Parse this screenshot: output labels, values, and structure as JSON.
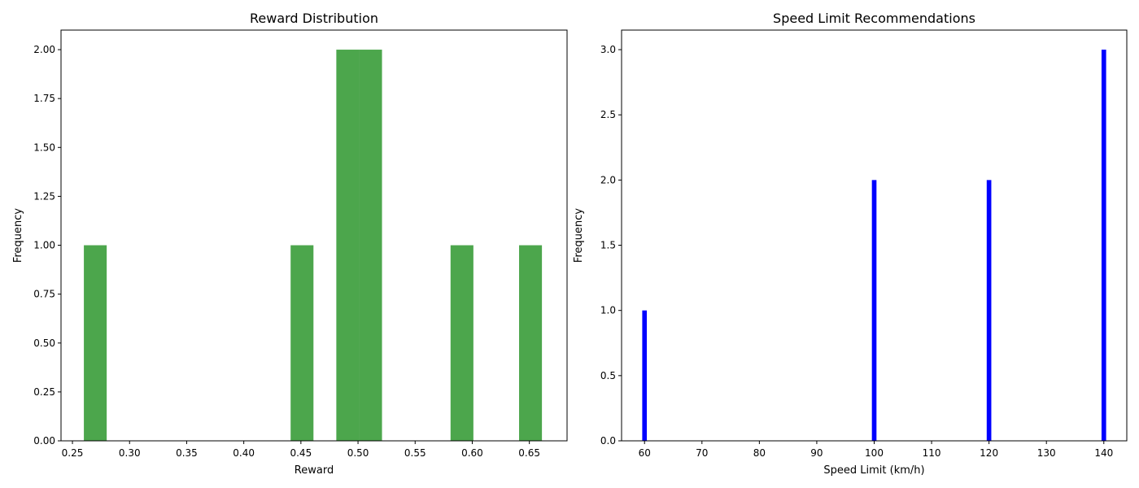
{
  "chart_data": [
    {
      "type": "bar",
      "title": "Reward Distribution",
      "xlabel": "Reward",
      "ylabel": "Frequency",
      "color": "#4ca64c",
      "xlim": [
        0.24,
        0.683
      ],
      "ylim": [
        0,
        2.1
      ],
      "xticks": [
        0.25,
        0.3,
        0.35,
        0.4,
        0.45,
        0.5,
        0.55,
        0.6,
        0.65
      ],
      "xtick_labels": [
        "0.25",
        "0.30",
        "0.35",
        "0.40",
        "0.45",
        "0.50",
        "0.55",
        "0.60",
        "0.65"
      ],
      "yticks": [
        0,
        0.25,
        0.5,
        0.75,
        1.0,
        1.25,
        1.5,
        1.75,
        2.0
      ],
      "ytick_labels": [
        "0.00",
        "0.25",
        "0.50",
        "0.75",
        "1.00",
        "1.25",
        "1.50",
        "1.75",
        "2.00"
      ],
      "bars": [
        {
          "x0": 0.26,
          "x1": 0.28,
          "value": 1
        },
        {
          "x0": 0.441,
          "x1": 0.461,
          "value": 1
        },
        {
          "x0": 0.481,
          "x1": 0.501,
          "value": 2
        },
        {
          "x0": 0.501,
          "x1": 0.521,
          "value": 2
        },
        {
          "x0": 0.581,
          "x1": 0.601,
          "value": 1
        },
        {
          "x0": 0.641,
          "x1": 0.661,
          "value": 1
        }
      ],
      "grid": false
    },
    {
      "type": "bar",
      "title": "Speed Limit Recommendations",
      "xlabel": "Speed Limit (km/h)",
      "ylabel": "Frequency",
      "color": "#0000ff",
      "xlim": [
        56,
        144
      ],
      "ylim": [
        0,
        3.15
      ],
      "xticks": [
        60,
        70,
        80,
        90,
        100,
        110,
        120,
        130,
        140
      ],
      "xtick_labels": [
        "60",
        "70",
        "80",
        "90",
        "100",
        "110",
        "120",
        "130",
        "140"
      ],
      "yticks": [
        0,
        0.5,
        1.0,
        1.5,
        2.0,
        2.5,
        3.0
      ],
      "ytick_labels": [
        "0.0",
        "0.5",
        "1.0",
        "1.5",
        "2.0",
        "2.5",
        "3.0"
      ],
      "bars": [
        {
          "x0": 59.6,
          "x1": 60.4,
          "value": 1
        },
        {
          "x0": 99.6,
          "x1": 100.4,
          "value": 2
        },
        {
          "x0": 119.6,
          "x1": 120.4,
          "value": 2
        },
        {
          "x0": 139.6,
          "x1": 140.4,
          "value": 3
        }
      ],
      "grid": false
    }
  ]
}
